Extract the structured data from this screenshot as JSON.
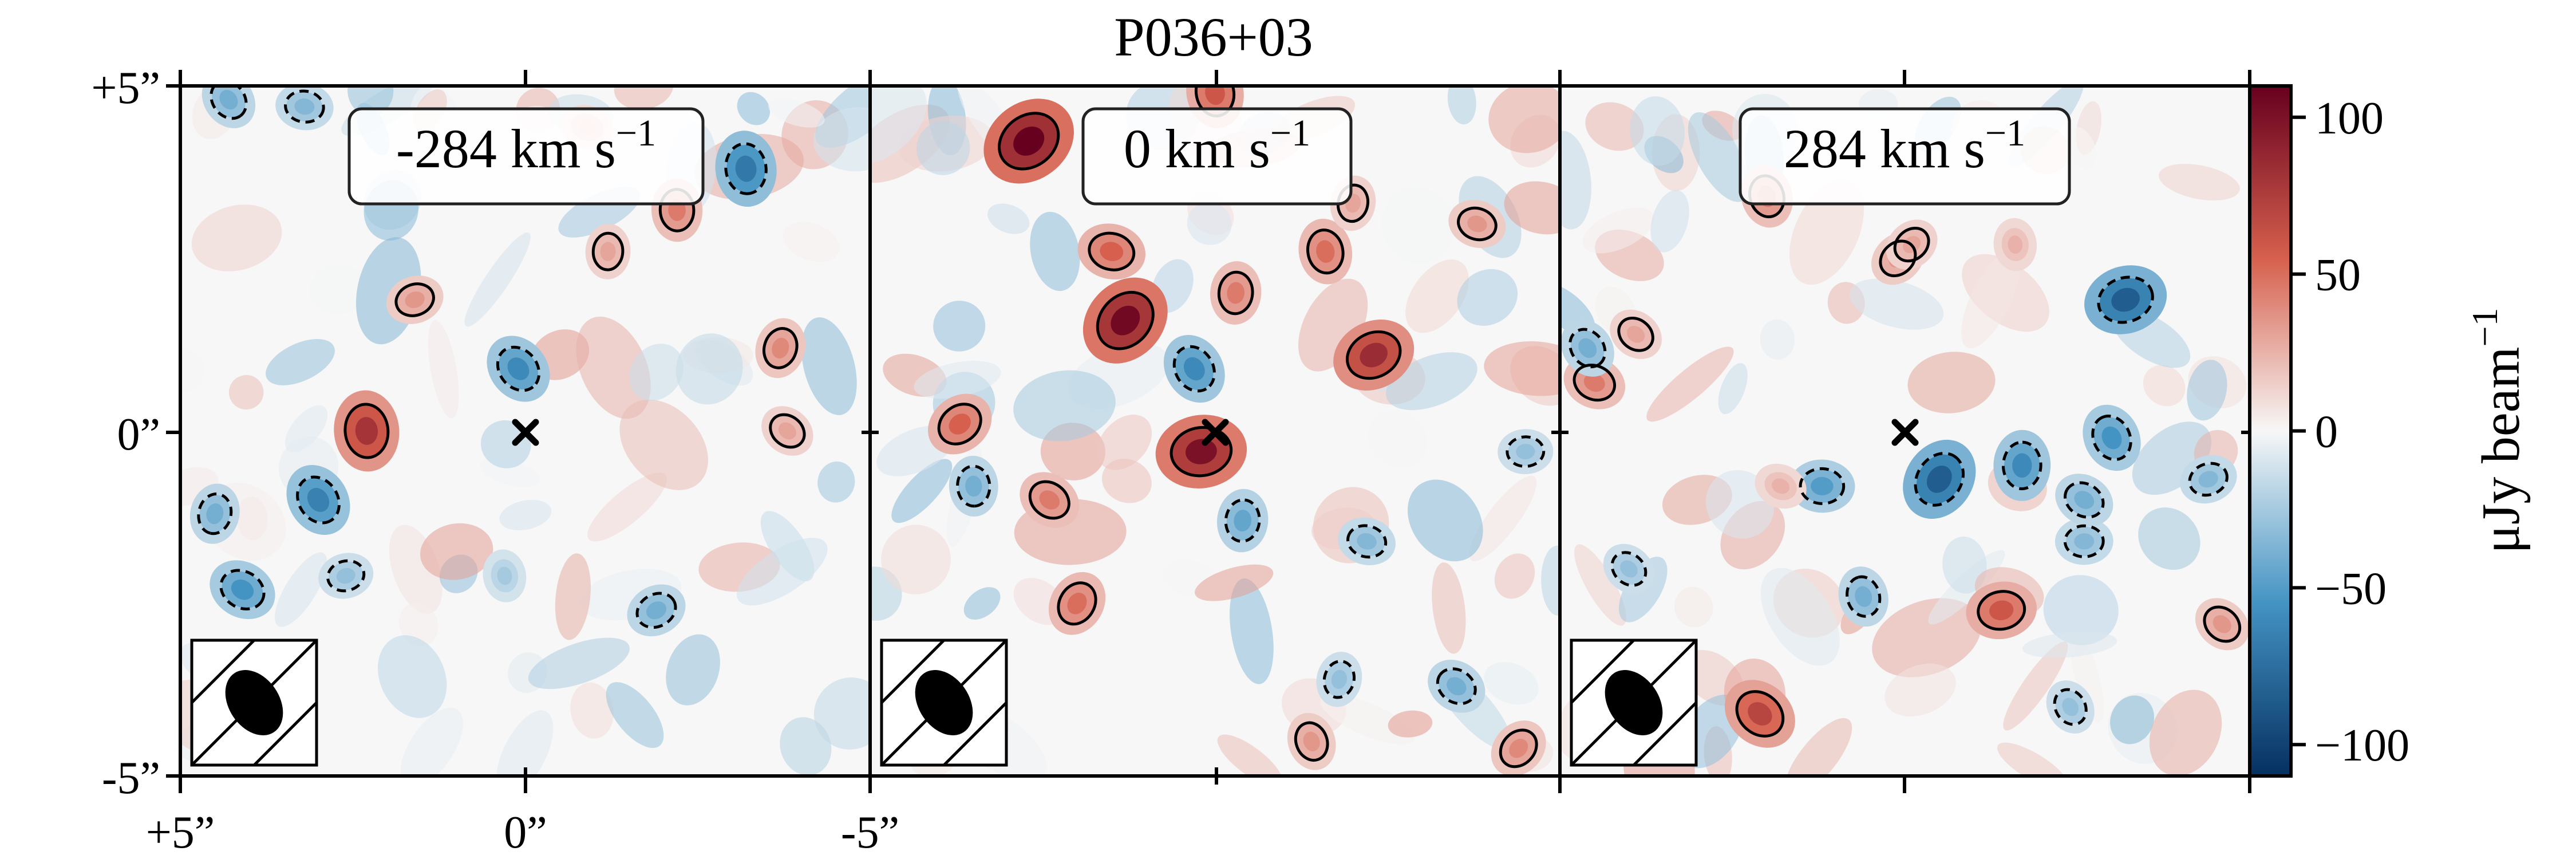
{
  "figure": {
    "title": "P036+03",
    "colorbar": {
      "label": "μJy beam",
      "label_superscript": "−1",
      "ticks": [
        "100",
        "50",
        "0",
        "−50",
        "−100"
      ],
      "range": [
        -110,
        110
      ],
      "colormap": "RdBu_r",
      "colors": {
        "high": "#67001f",
        "positive_mid": "#d6604d",
        "zero": "#f7f7f7",
        "negative_mid": "#4393c3",
        "low": "#053061"
      }
    },
    "axis_ticks": {
      "y": [
        "+5”",
        "0”",
        "-5”"
      ],
      "x": [
        "+5”",
        "0”",
        "-5”"
      ]
    },
    "panels": [
      {
        "label": "-284 km s",
        "label_sup": "−1"
      },
      {
        "label": "0 km s",
        "label_sup": "−1"
      },
      {
        "label": "284 km s",
        "label_sup": "−1"
      }
    ],
    "icons": {
      "source_marker": "x-cross-icon",
      "beam": "beam-ellipse-icon"
    }
  },
  "chart_data": {
    "type": "heatmap",
    "title": "P036+03",
    "units": "μJy beam−1",
    "color_range": [
      -110,
      110
    ],
    "colorbar_ticks": [
      100,
      50,
      0,
      -50,
      -100
    ],
    "x_ticks": [
      "+5”",
      "0”",
      "-5”"
    ],
    "y_ticks": [
      "+5”",
      "0”",
      "-5”"
    ],
    "extent_arcsec": [
      -5,
      5
    ],
    "panels": [
      {
        "velocity": "-284 km s−1",
        "peaks_arcsec_value": [
          [
            2.3,
            0.0,
            80
          ],
          [
            -3.2,
            3.8,
            -70
          ],
          [
            -2.2,
            3.2,
            45
          ],
          [
            -3.7,
            1.2,
            40
          ],
          [
            0.1,
            0.9,
            -60
          ],
          [
            3.0,
            -1.0,
            -65
          ],
          [
            4.1,
            -2.3,
            -55
          ],
          [
            4.5,
            -1.2,
            -40
          ],
          [
            -3.8,
            0.0,
            30
          ],
          [
            -1.9,
            -2.6,
            -40
          ],
          [
            4.3,
            4.8,
            -40
          ],
          [
            3.2,
            4.7,
            -35
          ],
          [
            0.3,
            -2.1,
            -25
          ],
          [
            2.6,
            -2.1,
            -30
          ],
          [
            -1.2,
            2.6,
            30
          ],
          [
            1.6,
            1.9,
            35
          ],
          [
            -0.9,
            4.4,
            25
          ],
          [
            3.7,
            -4.1,
            30
          ]
        ]
      },
      {
        "velocity": "0 km s−1",
        "peaks_arcsec_value": [
          [
            2.7,
            4.2,
            110
          ],
          [
            1.3,
            1.6,
            105
          ],
          [
            0.2,
            -0.3,
            100
          ],
          [
            -2.3,
            1.1,
            85
          ],
          [
            1.5,
            2.6,
            55
          ],
          [
            -1.6,
            2.6,
            50
          ],
          [
            -0.3,
            2.0,
            45
          ],
          [
            3.7,
            0.1,
            55
          ],
          [
            0.3,
            0.9,
            -60
          ],
          [
            3.5,
            -0.8,
            -40
          ],
          [
            -0.4,
            -1.3,
            -45
          ],
          [
            -2.2,
            -1.6,
            -35
          ],
          [
            -4.5,
            -0.3,
            -30
          ],
          [
            2.4,
            -1.0,
            45
          ],
          [
            2.0,
            -2.5,
            50
          ],
          [
            -3.8,
            3.0,
            35
          ],
          [
            -2.0,
            3.3,
            30
          ],
          [
            3.9,
            -3.5,
            40
          ],
          [
            -3.5,
            -3.7,
            -40
          ],
          [
            -1.4,
            -4.5,
            35
          ],
          [
            4.4,
            -4.0,
            45
          ],
          [
            -4.4,
            -4.6,
            40
          ],
          [
            0.0,
            4.9,
            60
          ],
          [
            -1.8,
            -3.6,
            -30
          ]
        ]
      },
      {
        "velocity": "284 km s−1",
        "peaks_arcsec_value": [
          [
            -3.2,
            1.9,
            -85
          ],
          [
            -0.5,
            -0.7,
            -85
          ],
          [
            -1.7,
            -0.5,
            -60
          ],
          [
            -3.0,
            -0.1,
            -55
          ],
          [
            1.2,
            -0.8,
            -50
          ],
          [
            -2.6,
            -1.6,
            -35
          ],
          [
            0.6,
            -2.4,
            -40
          ],
          [
            2.0,
            3.4,
            45
          ],
          [
            -1.4,
            -2.6,
            60
          ],
          [
            0.1,
            2.5,
            35
          ],
          [
            4.5,
            0.7,
            45
          ],
          [
            3.9,
            1.4,
            30
          ],
          [
            -2.6,
            -1.0,
            -40
          ],
          [
            -4.4,
            -0.7,
            -35
          ],
          [
            4.6,
            1.2,
            -40
          ],
          [
            -2.4,
            -4.0,
            -30
          ],
          [
            2.1,
            -4.1,
            70
          ],
          [
            -0.1,
            2.7,
            30
          ],
          [
            -4.6,
            -2.8,
            35
          ],
          [
            -1.6,
            2.7,
            25
          ],
          [
            4.0,
            -2.0,
            -30
          ],
          [
            1.8,
            -0.8,
            25
          ]
        ]
      }
    ]
  }
}
